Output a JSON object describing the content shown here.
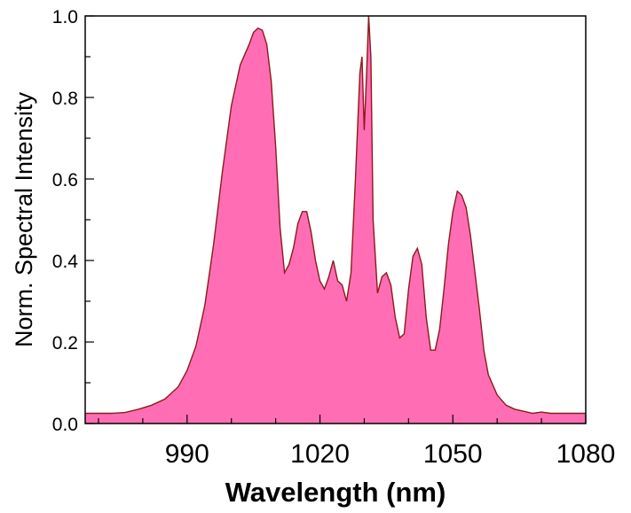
{
  "chart_data": {
    "type": "area",
    "title": "",
    "xlabel": "Wavelength (nm)",
    "ylabel": "Norm. Spectral Intensity",
    "xlim": [
      967,
      1080
    ],
    "ylim": [
      0.0,
      1.0
    ],
    "x_ticks": [
      990,
      1020,
      1050,
      1080
    ],
    "x_tick_labels": [
      "990",
      "1020",
      "1050",
      "1080"
    ],
    "y_ticks": [
      0.0,
      0.2,
      0.4,
      0.6,
      0.8,
      1.0
    ],
    "y_tick_labels": [
      "0.0",
      "0.2",
      "0.4",
      "0.6",
      "0.8",
      "1.0"
    ],
    "grid": false,
    "colors": {
      "fill": "#ff6eb4",
      "line": "#8b1a1a",
      "axis": "#000000"
    },
    "series": [
      {
        "x": [
          967,
          970,
          973,
          976,
          979,
          982,
          985,
          988,
          990,
          992,
          994,
          996,
          998,
          1000,
          1002,
          1004,
          1005,
          1006,
          1007,
          1008,
          1009,
          1010,
          1011,
          1012,
          1013,
          1014,
          1015,
          1016,
          1017,
          1018,
          1019,
          1020,
          1021,
          1022,
          1023,
          1024,
          1025,
          1026,
          1027,
          1028,
          1029,
          1029.5,
          1030,
          1030.5,
          1031,
          1031.5,
          1032,
          1033,
          1034,
          1035,
          1036,
          1037,
          1038,
          1039,
          1040,
          1041,
          1042,
          1043,
          1044,
          1045,
          1046,
          1047,
          1048,
          1049,
          1050,
          1051,
          1052,
          1053,
          1054,
          1055,
          1056,
          1057,
          1058,
          1060,
          1062,
          1064,
          1066,
          1068,
          1070,
          1072,
          1074,
          1076,
          1078,
          1080
        ],
        "y": [
          0.025,
          0.025,
          0.025,
          0.027,
          0.035,
          0.045,
          0.06,
          0.09,
          0.13,
          0.19,
          0.29,
          0.44,
          0.62,
          0.78,
          0.88,
          0.93,
          0.96,
          0.97,
          0.965,
          0.93,
          0.84,
          0.68,
          0.48,
          0.37,
          0.39,
          0.43,
          0.49,
          0.52,
          0.52,
          0.47,
          0.4,
          0.35,
          0.33,
          0.36,
          0.4,
          0.35,
          0.34,
          0.3,
          0.37,
          0.6,
          0.86,
          0.9,
          0.72,
          0.85,
          1.0,
          0.9,
          0.5,
          0.32,
          0.36,
          0.37,
          0.34,
          0.26,
          0.21,
          0.22,
          0.33,
          0.41,
          0.43,
          0.39,
          0.26,
          0.18,
          0.18,
          0.23,
          0.33,
          0.44,
          0.52,
          0.57,
          0.56,
          0.53,
          0.46,
          0.37,
          0.28,
          0.18,
          0.12,
          0.07,
          0.045,
          0.035,
          0.03,
          0.025,
          0.028,
          0.025,
          0.025,
          0.025,
          0.025,
          0.025
        ]
      }
    ]
  }
}
